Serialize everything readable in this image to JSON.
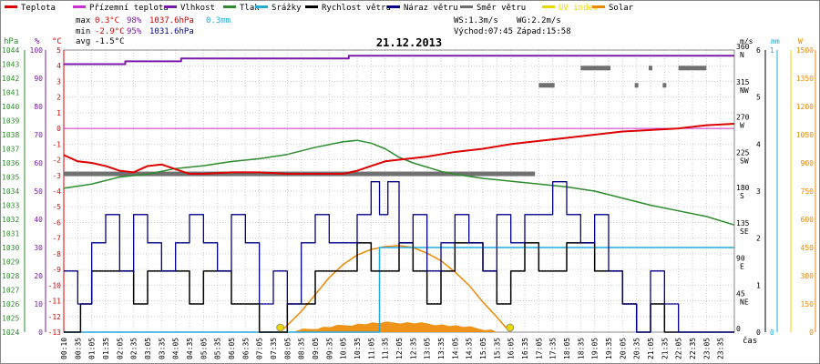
{
  "title": "21.12.2013",
  "legend": [
    {
      "label": "Teplota",
      "color": "#dd0000"
    },
    {
      "label": "Přízemní teplota",
      "color": "#cc33cc"
    },
    {
      "label": "Vlhkost",
      "color": "#7a1aa8"
    },
    {
      "label": "Tlak",
      "color": "#2e8b2e"
    },
    {
      "label": "Srážky",
      "color": "#22aadd"
    },
    {
      "label": "Rychlost větru",
      "color": "#000000"
    },
    {
      "label": "Náraz větru",
      "color": "#00008b"
    },
    {
      "label": "Směr větru",
      "color": "#707070"
    },
    {
      "label": "UV index",
      "color": "#e8d800"
    },
    {
      "label": "Solar",
      "color": "#ee8800"
    }
  ],
  "stats": {
    "max_label": "max",
    "max_temp": "0.3°C",
    "max_hum": "98%",
    "max_press": "1037.6hPa",
    "rain": "0.3mm",
    "min_label": "min",
    "min_temp": "-2.9°C",
    "min_hum": "95%",
    "min_press": "1031.6hPa",
    "avg_label": "avg",
    "avg_temp": "-1.5°C",
    "ws": "WS:1.3m/s",
    "wg": "WG:2.2m/s",
    "sunrise": "Východ:07:45",
    "sunset": "Západ:15:58"
  },
  "units": {
    "hpa": "hPa",
    "pct": "%",
    "degc": "°C",
    "ms": "m/s",
    "mm": "mm",
    "w": "W",
    "time": "čas"
  },
  "colors": {
    "temp": "#dd0000",
    "ground": "#cc33cc",
    "hum": "#7a1aa8",
    "press": "#2e8b2e",
    "rain": "#22aadd",
    "wind": "#000000",
    "gust": "#00008b",
    "dir": "#707070",
    "uv": "#e8d800",
    "solar": "#ee8800",
    "grid": "#cfcfcf"
  },
  "chart_data": {
    "type": "line",
    "x_ticks": [
      "00:10",
      "00:35",
      "01:05",
      "01:35",
      "02:05",
      "02:35",
      "03:05",
      "03:35",
      "04:05",
      "04:35",
      "05:05",
      "05:35",
      "06:05",
      "06:35",
      "07:05",
      "07:35",
      "08:05",
      "08:35",
      "09:05",
      "09:35",
      "10:05",
      "10:35",
      "11:05",
      "11:35",
      "12:05",
      "12:35",
      "13:05",
      "13:35",
      "14:05",
      "14:35",
      "15:05",
      "15:35",
      "16:05",
      "16:35",
      "17:05",
      "17:35",
      "18:05",
      "18:35",
      "19:05",
      "19:35",
      "20:05",
      "20:35",
      "21:05",
      "21:35",
      "22:05",
      "22:35",
      "23:05",
      "23:35"
    ],
    "axes": {
      "pressure": {
        "label": "hPa",
        "min": 1024,
        "max": 1044,
        "ticks": [
          1024,
          1025,
          1026,
          1027,
          1028,
          1029,
          1030,
          1031,
          1032,
          1033,
          1034,
          1035,
          1036,
          1037,
          1038,
          1039,
          1040,
          1041,
          1042,
          1043,
          1044
        ]
      },
      "humidity": {
        "label": "%",
        "min": 0,
        "max": 100,
        "ticks": [
          0,
          10,
          20,
          30,
          40,
          50,
          60,
          70,
          80,
          90,
          100
        ]
      },
      "temperature": {
        "label": "°C",
        "min": -13,
        "max": 5,
        "ticks": [
          -13,
          -12,
          -11,
          -10,
          -9,
          -8,
          -7,
          -6,
          -5,
          -4,
          -3,
          -2,
          -1,
          0,
          1,
          2,
          3,
          4,
          5
        ]
      },
      "wind_dir": {
        "ticks": [
          {
            "value": 360,
            "label": "N"
          },
          {
            "value": 315,
            "label": "NW"
          },
          {
            "value": 270,
            "label": "W"
          },
          {
            "value": 225,
            "label": "SW"
          },
          {
            "value": 180,
            "label": "S"
          },
          {
            "value": 135,
            "label": "SE"
          },
          {
            "value": 90,
            "label": "E"
          },
          {
            "value": 45,
            "label": "NE"
          },
          {
            "value": 0,
            "label": ""
          }
        ]
      },
      "wind_speed": {
        "label": "m/s",
        "min": 0,
        "max": 6,
        "ticks": [
          0,
          1,
          2,
          3,
          4,
          5,
          6
        ]
      },
      "rain": {
        "label": "mm",
        "min": 0,
        "max": 1,
        "ticks": [
          0,
          1
        ]
      },
      "solar": {
        "label": "W",
        "min": 0,
        "max": 1500,
        "ticks": [
          0,
          150,
          300,
          450,
          600,
          750,
          900,
          1050,
          1200,
          1350,
          1500
        ]
      }
    },
    "series": [
      {
        "name": "Teplota",
        "axis": "temperature",
        "points": [
          [
            0,
            -1.7
          ],
          [
            0.5,
            -2.1
          ],
          [
            1,
            -2.2
          ],
          [
            1.5,
            -2.4
          ],
          [
            2,
            -2.7
          ],
          [
            2.5,
            -2.8
          ],
          [
            3,
            -2.4
          ],
          [
            3.5,
            -2.3
          ],
          [
            4,
            -2.6
          ],
          [
            4.5,
            -2.9
          ],
          [
            5,
            -2.9
          ],
          [
            6,
            -2.8
          ],
          [
            7,
            -2.8
          ],
          [
            8,
            -2.9
          ],
          [
            9,
            -2.9
          ],
          [
            10,
            -2.9
          ],
          [
            10.5,
            -2.7
          ],
          [
            11,
            -2.4
          ],
          [
            11.5,
            -2.1
          ],
          [
            12,
            -2.0
          ],
          [
            13,
            -1.8
          ],
          [
            14,
            -1.5
          ],
          [
            15,
            -1.3
          ],
          [
            16,
            -1.0
          ],
          [
            17,
            -0.8
          ],
          [
            18,
            -0.6
          ],
          [
            19,
            -0.4
          ],
          [
            20,
            -0.2
          ],
          [
            21,
            -0.1
          ],
          [
            22,
            0.0
          ],
          [
            23,
            0.2
          ],
          [
            24,
            0.3
          ]
        ]
      },
      {
        "name": "Přízemní teplota",
        "axis": "temperature",
        "points": [
          [
            0,
            0
          ],
          [
            24,
            0
          ]
        ]
      },
      {
        "name": "Vlhkost",
        "axis": "humidity",
        "points": [
          [
            0,
            95
          ],
          [
            2,
            95
          ],
          [
            2.2,
            96
          ],
          [
            4,
            96
          ],
          [
            4.2,
            97
          ],
          [
            10,
            97
          ],
          [
            10.2,
            98
          ],
          [
            24,
            98
          ]
        ]
      },
      {
        "name": "Tlak",
        "axis": "pressure",
        "points": [
          [
            0,
            1034.2
          ],
          [
            1,
            1034.5
          ],
          [
            2,
            1035
          ],
          [
            3,
            1035.2
          ],
          [
            4,
            1035.6
          ],
          [
            5,
            1035.8
          ],
          [
            6,
            1036.1
          ],
          [
            7,
            1036.3
          ],
          [
            8,
            1036.6
          ],
          [
            9,
            1037.1
          ],
          [
            10,
            1037.5
          ],
          [
            10.5,
            1037.6
          ],
          [
            11,
            1037.4
          ],
          [
            11.5,
            1037.0
          ],
          [
            12,
            1036.4
          ],
          [
            12.5,
            1036.0
          ],
          [
            13,
            1035.7
          ],
          [
            13.5,
            1035.4
          ],
          [
            14,
            1035.2
          ],
          [
            15,
            1034.9
          ],
          [
            16,
            1034.7
          ],
          [
            17,
            1034.5
          ],
          [
            18,
            1034.3
          ],
          [
            19,
            1034.0
          ],
          [
            20,
            1033.5
          ],
          [
            21,
            1033.0
          ],
          [
            22,
            1032.6
          ],
          [
            23,
            1032.2
          ],
          [
            24,
            1031.6
          ]
        ]
      },
      {
        "name": "Srážky",
        "axis": "rain",
        "points": [
          [
            0,
            0
          ],
          [
            11.2,
            0
          ],
          [
            11.3,
            0.3
          ],
          [
            24,
            0.3
          ]
        ]
      },
      {
        "name": "Rychlost větru",
        "axis": "wind_speed",
        "points": [
          [
            0,
            0
          ],
          [
            0.6,
            0.6
          ],
          [
            1,
            1.3
          ],
          [
            2,
            1.3
          ],
          [
            2.5,
            0.6
          ],
          [
            3,
            1.3
          ],
          [
            4,
            1.3
          ],
          [
            4.5,
            0.6
          ],
          [
            5,
            1.3
          ],
          [
            6,
            0.6
          ],
          [
            7,
            0
          ],
          [
            8,
            0.6
          ],
          [
            9,
            1.3
          ],
          [
            10,
            1.3
          ],
          [
            10.5,
            1.9
          ],
          [
            11,
            1.3
          ],
          [
            12,
            1.9
          ],
          [
            12.5,
            1.3
          ],
          [
            13,
            0.6
          ],
          [
            13.5,
            1.3
          ],
          [
            14,
            1.9
          ],
          [
            15,
            1.3
          ],
          [
            15.5,
            0.6
          ],
          [
            16,
            1.3
          ],
          [
            16.5,
            1.9
          ],
          [
            17,
            1.3
          ],
          [
            18,
            1.9
          ],
          [
            19,
            1.3
          ],
          [
            20,
            0.6
          ],
          [
            20.5,
            0
          ],
          [
            21,
            0.6
          ],
          [
            21.5,
            0
          ],
          [
            24,
            0
          ]
        ]
      },
      {
        "name": "Náraz větru",
        "axis": "wind_speed",
        "points": [
          [
            0,
            1.3
          ],
          [
            0.5,
            0.6
          ],
          [
            1,
            1.9
          ],
          [
            1.5,
            2.5
          ],
          [
            2,
            1.3
          ],
          [
            2.5,
            2.5
          ],
          [
            3,
            1.9
          ],
          [
            3.5,
            1.3
          ],
          [
            4,
            1.9
          ],
          [
            4.5,
            2.5
          ],
          [
            5,
            1.9
          ],
          [
            5.5,
            1.3
          ],
          [
            6,
            2.5
          ],
          [
            6.5,
            1.9
          ],
          [
            7,
            0.6
          ],
          [
            7.5,
            1.3
          ],
          [
            8,
            0.6
          ],
          [
            8.5,
            1.9
          ],
          [
            9,
            2.5
          ],
          [
            9.5,
            1.9
          ],
          [
            10,
            1.9
          ],
          [
            10.5,
            2.5
          ],
          [
            11,
            3.2
          ],
          [
            11.3,
            2.5
          ],
          [
            11.6,
            3.2
          ],
          [
            12,
            1.9
          ],
          [
            12.5,
            2.5
          ],
          [
            13,
            1.3
          ],
          [
            13.5,
            1.9
          ],
          [
            14,
            2.5
          ],
          [
            14.5,
            1.9
          ],
          [
            15,
            1.3
          ],
          [
            15.5,
            2.5
          ],
          [
            16,
            1.9
          ],
          [
            16.5,
            2.5
          ],
          [
            17,
            2.5
          ],
          [
            17.5,
            3.2
          ],
          [
            18,
            2.5
          ],
          [
            18.5,
            1.9
          ],
          [
            19,
            2.5
          ],
          [
            19.5,
            1.3
          ],
          [
            20,
            0.6
          ],
          [
            20.5,
            0
          ],
          [
            21,
            1.3
          ],
          [
            21.5,
            0.6
          ],
          [
            22,
            0
          ],
          [
            24,
            0
          ]
        ]
      },
      {
        "name": "Směr větru",
        "axis": "wind_dir",
        "points": [
          [
            0,
            202
          ],
          [
            16.8,
            202
          ],
          [
            17,
            315
          ],
          [
            17.5,
            315
          ],
          [
            18.5,
            337
          ],
          [
            19.5,
            337
          ],
          [
            20.5,
            315
          ],
          [
            21,
            337
          ],
          [
            21.5,
            315
          ],
          [
            22,
            337
          ],
          [
            23,
            337
          ]
        ]
      },
      {
        "name": "Solar",
        "axis": "solar",
        "points": [
          [
            7.75,
            0
          ],
          [
            8.5,
            110
          ],
          [
            9,
            200
          ],
          [
            9.5,
            290
          ],
          [
            10,
            360
          ],
          [
            10.5,
            410
          ],
          [
            11,
            440
          ],
          [
            11.5,
            455
          ],
          [
            12,
            460
          ],
          [
            12.5,
            450
          ],
          [
            13,
            420
          ],
          [
            13.5,
            380
          ],
          [
            14,
            320
          ],
          [
            14.5,
            250
          ],
          [
            15,
            160
          ],
          [
            15.5,
            80
          ],
          [
            15.97,
            0
          ]
        ]
      },
      {
        "name": "UV index",
        "axis": "solar",
        "points": [
          [
            7.75,
            0
          ],
          [
            15.97,
            0
          ]
        ]
      }
    ]
  }
}
